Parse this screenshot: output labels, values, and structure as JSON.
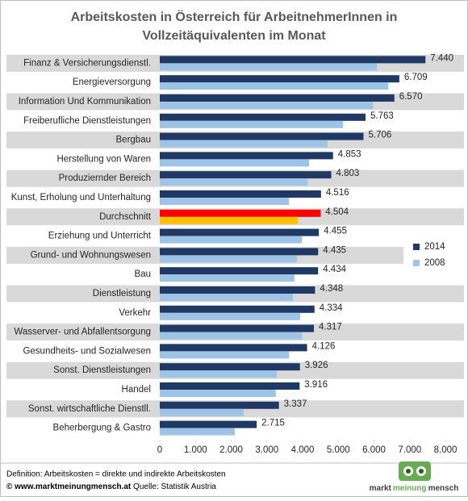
{
  "chart_data": {
    "type": "hbar",
    "title": [
      "Arbeitskosten in Österreich für ArbeitnehmerInnen in",
      "Vollzeitäquivalenten im Monat"
    ],
    "categories": [
      "Finanz & Versicherungsdienstl.",
      "Energieversorgung",
      "Information Und Kommunikation",
      "Freiberufliche Dienstleistungen",
      "Bergbau",
      "Herstellung von Waren",
      "Produziernder  Bereich",
      "Kunst, Erholung und Unterhaltung",
      "Durchschnitt",
      "Erziehung und Unterricht",
      "Grund- und Wohnungswesen",
      "Bau",
      "Dienstleistung",
      "Verkehr",
      "Wasserver- und Abfallentsorgung",
      "Gesundheits- und Sozialwesen",
      "Sonst. Dienstleistungen",
      "Handel",
      "Sonst. wirtschaftliche Dienstll.",
      "Beherbergung & Gastro"
    ],
    "series": [
      {
        "name": "2014",
        "color": "#203864",
        "point_colors": [
          "#203864",
          "#203864",
          "#203864",
          "#203864",
          "#203864",
          "#203864",
          "#203864",
          "#203864",
          "#ff0000",
          "#203864",
          "#203864",
          "#203864",
          "#203864",
          "#203864",
          "#203864",
          "#203864",
          "#203864",
          "#203864",
          "#203864",
          "#203864"
        ],
        "values": [
          7440,
          6709,
          6570,
          5763,
          5706,
          4853,
          4803,
          4516,
          4504,
          4455,
          4435,
          4434,
          4348,
          4334,
          4317,
          4126,
          3926,
          3916,
          3337,
          2715
        ],
        "value_labels": [
          "7.440",
          "6.709",
          "6.570",
          "5.763",
          "5.706",
          "4.853",
          "4.803",
          "4.516",
          "4.504",
          "4.455",
          "4.435",
          "4.434",
          "4.348",
          "4.334",
          "4.317",
          "4.126",
          "3.926",
          "3.916",
          "3.337",
          "2.715"
        ]
      },
      {
        "name": "2008",
        "color": "#9dc3e6",
        "point_colors": [
          "#9dc3e6",
          "#9dc3e6",
          "#9dc3e6",
          "#9dc3e6",
          "#9dc3e6",
          "#9dc3e6",
          "#9dc3e6",
          "#9dc3e6",
          "#ffc000",
          "#9dc3e6",
          "#9dc3e6",
          "#9dc3e6",
          "#9dc3e6",
          "#9dc3e6",
          "#9dc3e6",
          "#9dc3e6",
          "#9dc3e6",
          "#9dc3e6",
          "#9dc3e6",
          "#9dc3e6"
        ],
        "values": [
          6080,
          6400,
          5970,
          5130,
          4700,
          4180,
          4140,
          3620,
          3860,
          3980,
          3840,
          3770,
          3730,
          3930,
          3980,
          3620,
          3280,
          3250,
          2350,
          2100
        ]
      }
    ],
    "xlim": [
      0,
      8000
    ],
    "xticks": [
      0,
      {
        "value": 1000,
        "label": "1.000"
      },
      {
        "value": 2000,
        "label": "2.000"
      },
      {
        "value": 3000,
        "label": "3.000"
      },
      {
        "value": 4000,
        "label": "4.000"
      },
      {
        "value": 5000,
        "label": "5.000"
      },
      {
        "value": 6000,
        "label": "6.000"
      },
      {
        "value": 7000,
        "label": "7.000"
      },
      {
        "value": 8000,
        "label": "8.000"
      }
    ],
    "band_color": "#d9d9d9",
    "legend": "right"
  },
  "footer": {
    "definition": "Definition: Arbeitskosten = direkte und indirekte Arbeitskosten",
    "site": "© www.marktmeinungmensch.at",
    "source": "Quelle: Statistik Austria",
    "logo": [
      "markt",
      "meinung",
      "mensch"
    ]
  }
}
